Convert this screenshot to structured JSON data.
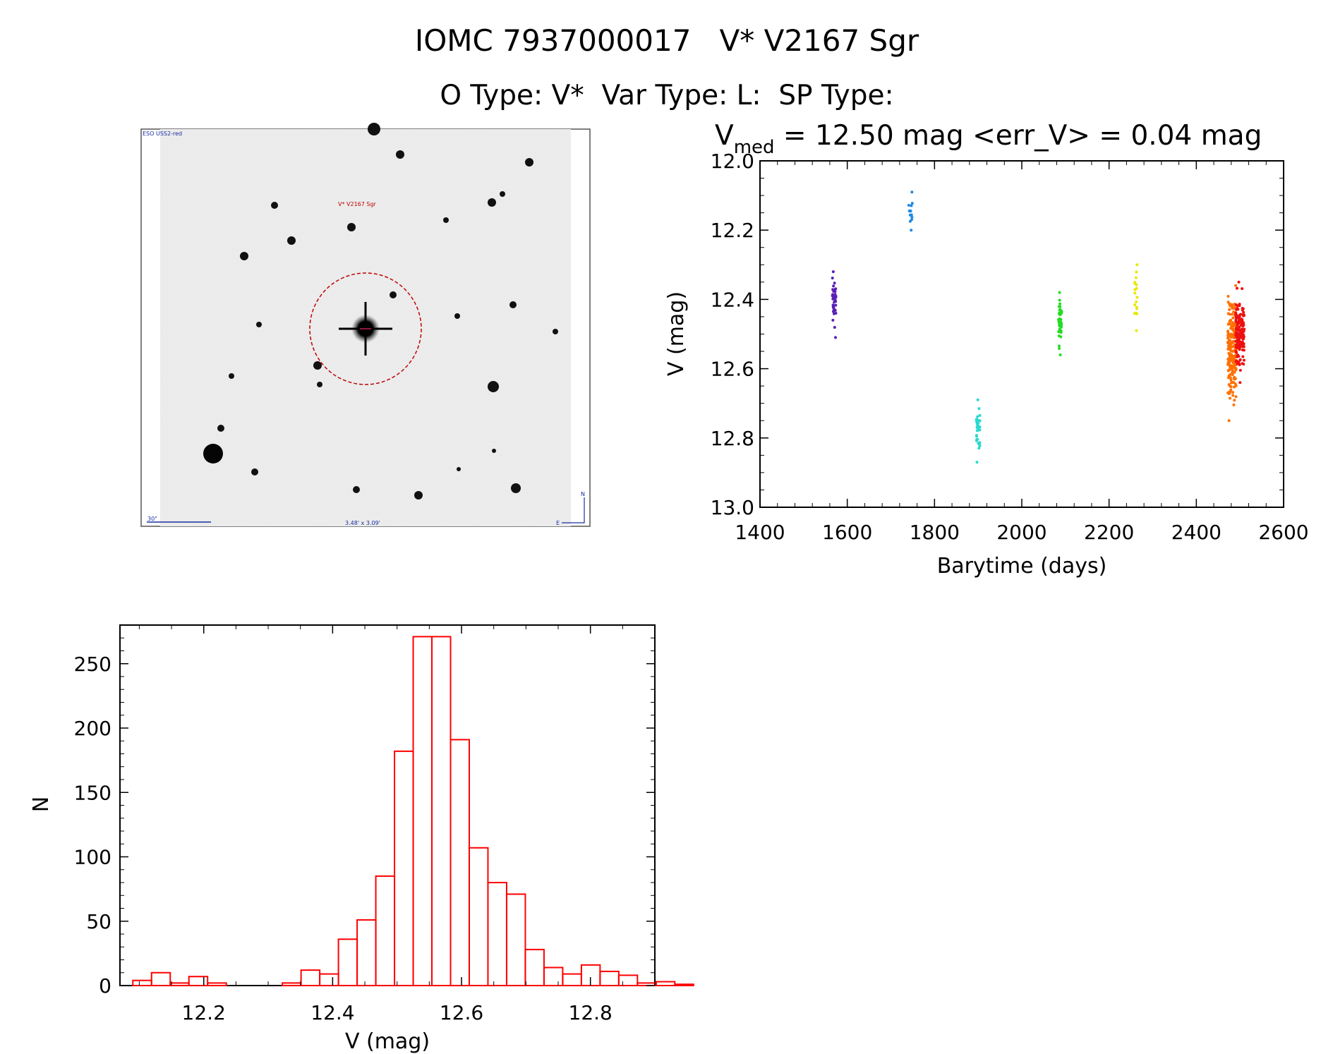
{
  "header": {
    "title": "IOMC 7937000017   V* V2167 Sgr",
    "subtitle": "O Type: V*  Var Type: L:  SP Type:"
  },
  "image_panel": {
    "survey_label": "ESO USS2-red",
    "target_label": "V* V2167 Sgr",
    "scale_label": "30\"",
    "size_label": "3.48' x 3.09'",
    "north_label": "N",
    "east_label": "E"
  },
  "chart_data": [
    {
      "type": "scatter",
      "title_prefix": "V",
      "title_sub": "med",
      "title_rest": " = 12.50 mag <err_V> = 0.04 mag",
      "xlabel": "Barytime (days)",
      "ylabel": "V (mag)",
      "xlim": [
        1400,
        2600
      ],
      "ylim": [
        13.0,
        12.0
      ],
      "y_inverted": true,
      "xticks": [
        1400,
        1600,
        1800,
        2000,
        2200,
        2400,
        2600
      ],
      "yticks": [
        "12.0",
        "12.2",
        "12.4",
        "12.6",
        "12.8",
        "13.0"
      ],
      "groups": [
        {
          "x": 1570,
          "y_min": 12.32,
          "y_max": 12.51,
          "center": 12.39,
          "n": 40,
          "color": "#5a1fb4"
        },
        {
          "x": 1745,
          "y_min": 12.09,
          "y_max": 12.2,
          "center": 12.14,
          "n": 14,
          "color": "#1e88e5"
        },
        {
          "x": 1900,
          "y_min": 12.69,
          "y_max": 12.87,
          "center": 12.76,
          "n": 35,
          "color": "#2ad9d0"
        },
        {
          "x": 2088,
          "y_min": 12.38,
          "y_max": 12.56,
          "center": 12.45,
          "n": 40,
          "color": "#22dd22"
        },
        {
          "x": 2262,
          "y_min": 12.3,
          "y_max": 12.49,
          "center": 12.38,
          "n": 18,
          "color": "#e8e800"
        },
        {
          "x": 2482,
          "y_min": 12.36,
          "y_max": 12.75,
          "center": 12.54,
          "n": 200,
          "color": "#ff7000"
        },
        {
          "x": 2500,
          "y_min": 12.35,
          "y_max": 12.64,
          "center": 12.5,
          "n": 170,
          "color": "#ee1111"
        }
      ]
    },
    {
      "type": "bar",
      "style": "histogram",
      "xlabel": "V (mag)",
      "ylabel": "N",
      "xlim": [
        12.07,
        12.9
      ],
      "ylim": [
        0,
        280
      ],
      "xticks": [
        "12.2",
        "12.4",
        "12.6",
        "12.8"
      ],
      "yticks": [
        "0",
        "50",
        "100",
        "150",
        "200",
        "250"
      ],
      "bin_width": 0.029,
      "bin_start": 12.09,
      "counts": [
        4,
        10,
        2,
        7,
        2,
        0,
        0,
        0,
        2,
        12,
        9,
        36,
        51,
        85,
        182,
        271,
        271,
        191,
        107,
        80,
        71,
        28,
        14,
        9,
        16,
        11,
        8,
        2,
        3,
        1
      ],
      "color": "#ff0000"
    }
  ]
}
